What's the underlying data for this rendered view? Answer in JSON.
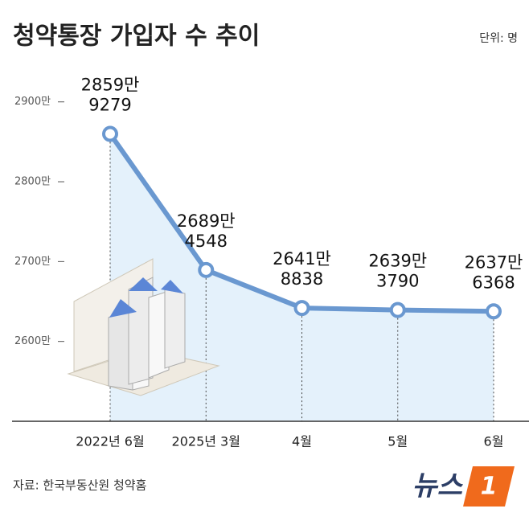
{
  "chart_data": {
    "type": "line",
    "title": "청약통장 가입자 수 추이",
    "unit_note": "단위: 명",
    "source": "자료: 한국부동산원 청약홈",
    "logo": {
      "text": "뉴스",
      "mark": "1"
    },
    "categories": [
      "2022년 6월",
      "2025년 3월",
      "4월",
      "5월",
      "6월"
    ],
    "values": [
      28599279,
      26894548,
      26418838,
      26393790,
      26376368
    ],
    "value_labels": [
      [
        "2859만",
        "9279"
      ],
      [
        "2689만",
        "4548"
      ],
      [
        "2641만",
        "8838"
      ],
      [
        "2639만",
        "3790"
      ],
      [
        "2637만",
        "6368"
      ]
    ],
    "color": "#6a98d0",
    "area_color": "#e4f1fb",
    "ylim": [
      25000000,
      29400000
    ],
    "yticks": [
      {
        "value": 26000000,
        "label": "2600만"
      },
      {
        "value": 27000000,
        "label": "2700만"
      },
      {
        "value": 28000000,
        "label": "2800만"
      },
      {
        "value": 29000000,
        "label": "2900만"
      }
    ]
  }
}
